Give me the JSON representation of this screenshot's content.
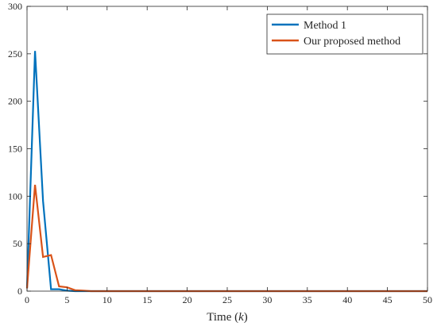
{
  "chart_data": {
    "type": "line",
    "title": "",
    "xlabel": "Time (k)",
    "xlabel_parts": {
      "before": "Time (",
      "variable": "k",
      "after": ")"
    },
    "ylabel": "",
    "xlim": [
      0,
      50
    ],
    "ylim": [
      0,
      300
    ],
    "xticks": [
      0,
      5,
      10,
      15,
      20,
      25,
      30,
      35,
      40,
      45,
      50
    ],
    "yticks": [
      0,
      50,
      100,
      150,
      200,
      250,
      300
    ],
    "grid": false,
    "legend_position": "top-right",
    "series": [
      {
        "name": "Method 1",
        "color": "#0072BD",
        "x": [
          0,
          1,
          2,
          3,
          4,
          5,
          6,
          7,
          8,
          9,
          10,
          11,
          12,
          13,
          14,
          15,
          16,
          17,
          18,
          19,
          20,
          21,
          22,
          23,
          24,
          25,
          26,
          27,
          28,
          29,
          30,
          31,
          32,
          33,
          34,
          35,
          36,
          37,
          38,
          39,
          40,
          41,
          42,
          43,
          44,
          45,
          46,
          47,
          48,
          49,
          50
        ],
        "y": [
          3,
          253,
          95,
          2,
          2,
          0.5,
          0,
          0,
          0,
          0,
          0,
          0,
          0,
          0,
          0,
          0,
          0,
          0,
          0,
          0,
          0,
          0,
          0,
          0,
          0,
          0,
          0,
          0,
          0,
          0,
          0,
          0,
          0,
          0,
          0,
          0,
          0,
          0,
          0,
          0,
          0,
          0,
          0,
          0,
          0,
          0,
          0,
          0,
          0,
          0,
          0
        ]
      },
      {
        "name": "Our proposed method",
        "color": "#D95319",
        "x": [
          0,
          1,
          2,
          3,
          4,
          5,
          6,
          7,
          8,
          9,
          10,
          11,
          12,
          13,
          14,
          15,
          16,
          17,
          18,
          19,
          20,
          21,
          22,
          23,
          24,
          25,
          26,
          27,
          28,
          29,
          30,
          31,
          32,
          33,
          34,
          35,
          36,
          37,
          38,
          39,
          40,
          41,
          42,
          43,
          44,
          45,
          46,
          47,
          48,
          49,
          50
        ],
        "y": [
          3,
          112,
          36,
          38,
          5,
          4,
          1,
          0.5,
          0,
          0,
          0,
          0,
          0,
          0,
          0,
          0,
          0,
          0,
          0,
          0,
          0,
          0,
          0,
          0,
          0,
          0,
          0,
          0,
          0,
          0,
          0,
          0,
          0,
          0,
          0,
          0,
          0,
          0,
          0,
          0,
          0,
          0,
          0,
          0,
          0,
          0,
          0,
          0,
          0,
          0,
          0
        ]
      }
    ]
  }
}
